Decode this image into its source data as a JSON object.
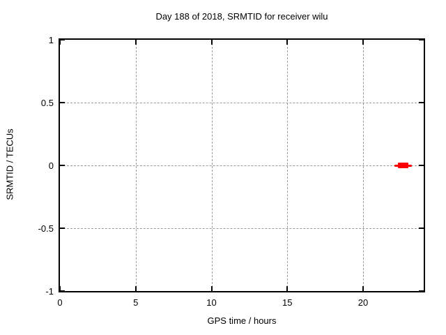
{
  "figure": {
    "background": "#ffffff",
    "border_color": "#000000",
    "grid_color": "#999999",
    "text_color": "#000000"
  },
  "chart_data": {
    "type": "scatter",
    "title": "Day 188 of 2018, SRMTID for receiver wilu",
    "xlabel": "GPS time / hours",
    "ylabel": "SRMTID / TECUs",
    "xlim": [
      0,
      24
    ],
    "ylim": [
      -1,
      1
    ],
    "xticks": [
      0,
      5,
      10,
      15,
      20
    ],
    "yticks": [
      -1,
      -0.5,
      0,
      0.5,
      1
    ],
    "grid": true,
    "legend": "none",
    "series": [
      {
        "name": "SRMTID",
        "color": "#ff0000",
        "style": "thick-segment",
        "segments": [
          {
            "y": 0,
            "x_start": 22.05,
            "x_end": 23.2,
            "weight": "thin"
          },
          {
            "y": 0,
            "x_start": 22.3,
            "x_end": 23.0,
            "weight": "thick"
          }
        ]
      }
    ]
  }
}
